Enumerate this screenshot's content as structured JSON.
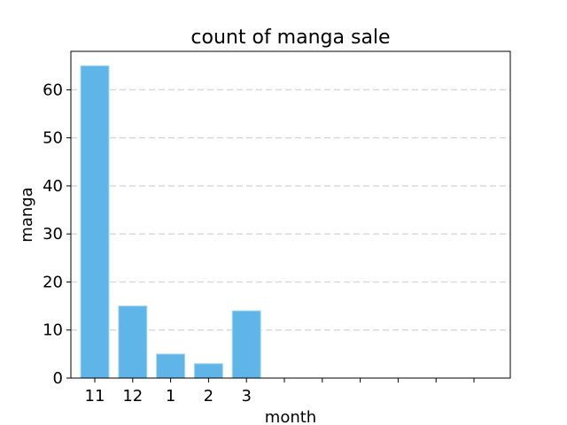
{
  "chart_data": {
    "type": "bar",
    "title": "count of manga sale",
    "xlabel": "month",
    "ylabel": "manga",
    "categories": [
      "11",
      "12",
      "1",
      "2",
      "3",
      "",
      "",
      "",
      "",
      "",
      ""
    ],
    "values": [
      65,
      15,
      5,
      3,
      14,
      null,
      null,
      null,
      null,
      null,
      null
    ],
    "ylim": [
      0,
      68
    ],
    "yticks": [
      0,
      10,
      20,
      30,
      40,
      50,
      60
    ],
    "grid": "y-dashed",
    "bar_color": "#5fb4e8",
    "bar_edge_color": "#a8d7f3"
  }
}
